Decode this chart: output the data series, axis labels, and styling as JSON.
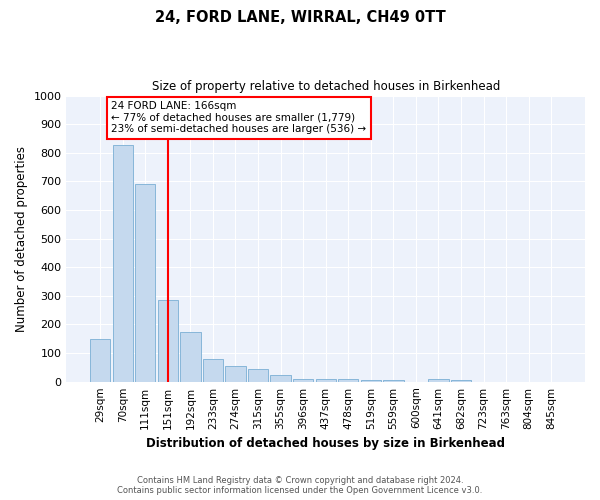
{
  "title": "24, FORD LANE, WIRRAL, CH49 0TT",
  "subtitle": "Size of property relative to detached houses in Birkenhead",
  "xlabel": "Distribution of detached houses by size in Birkenhead",
  "ylabel": "Number of detached properties",
  "categories": [
    "29sqm",
    "70sqm",
    "111sqm",
    "151sqm",
    "192sqm",
    "233sqm",
    "274sqm",
    "315sqm",
    "355sqm",
    "396sqm",
    "437sqm",
    "478sqm",
    "519sqm",
    "559sqm",
    "600sqm",
    "641sqm",
    "682sqm",
    "723sqm",
    "763sqm",
    "804sqm",
    "845sqm"
  ],
  "values": [
    150,
    828,
    690,
    284,
    175,
    80,
    55,
    45,
    25,
    10,
    10,
    10,
    5,
    5,
    0,
    10,
    5,
    0,
    0,
    0,
    0
  ],
  "bar_color": "#c5d9ee",
  "bar_edge_color": "#7aafd4",
  "background_color": "#edf2fb",
  "grid_color": "#ffffff",
  "annotation_text_line1": "24 FORD LANE: 166sqm",
  "annotation_text_line2": "← 77% of detached houses are smaller (1,779)",
  "annotation_text_line3": "23% of semi-detached houses are larger (536) →",
  "red_line_x": 3.0,
  "ylim": [
    0,
    1000
  ],
  "yticks": [
    0,
    100,
    200,
    300,
    400,
    500,
    600,
    700,
    800,
    900,
    1000
  ],
  "footer_line1": "Contains HM Land Registry data © Crown copyright and database right 2024.",
  "footer_line2": "Contains public sector information licensed under the Open Government Licence v3.0."
}
